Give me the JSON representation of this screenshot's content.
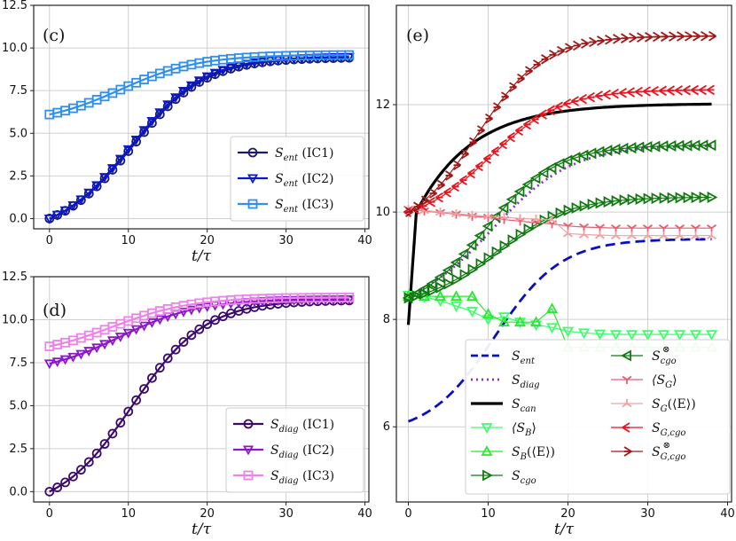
{
  "chart_data": [
    {
      "panel": "(c)",
      "type": "line",
      "xlabel": "t/τ",
      "xlim": [
        -2,
        40.5
      ],
      "ylim": [
        -0.6,
        12.5
      ],
      "xticks": [
        0,
        10,
        20,
        30,
        40
      ],
      "yticks": [
        0.0,
        2.5,
        5.0,
        7.5,
        10.0,
        12.5
      ],
      "ytick_labels": [
        "0.0",
        "2.5",
        "5.0",
        "7.5",
        "10.0",
        "12.5"
      ],
      "legend_position": "lower-right",
      "series": [
        {
          "name": "S_ent (IC1)",
          "label_main": "S",
          "label_sub": "ent",
          "label_suffix": " (IC1)",
          "color": "#1a1a6e",
          "marker": "circle",
          "fn": "sig",
          "params": [
            0.0,
            9.45,
            10.5,
            0.215
          ]
        },
        {
          "name": "S_ent (IC2)",
          "label_main": "S",
          "label_sub": "ent",
          "label_suffix": " (IC2)",
          "color": "#0a18c8",
          "marker": "tri_down",
          "fn": "sig",
          "params": [
            0.0,
            9.5,
            10.3,
            0.215
          ]
        },
        {
          "name": "S_ent (IC3)",
          "label_main": "S",
          "label_sub": "ent",
          "label_suffix": " (IC3)",
          "color": "#2f8fef",
          "marker": "square",
          "fn": "sig",
          "params": [
            6.1,
            9.6,
            9.0,
            0.2
          ]
        }
      ]
    },
    {
      "panel": "(d)",
      "type": "line",
      "xlabel": "t/τ",
      "xlim": [
        -2,
        40.5
      ],
      "ylim": [
        -0.6,
        12.5
      ],
      "xticks": [
        0,
        10,
        20,
        30,
        40
      ],
      "yticks": [
        0.0,
        2.5,
        5.0,
        7.5,
        10.0,
        12.5
      ],
      "ytick_labels": [
        "0.0",
        "2.5",
        "5.0",
        "7.5",
        "10.0",
        "12.5"
      ],
      "legend_position": "lower-right",
      "series": [
        {
          "name": "S_diag (IC1)",
          "label_main": "S",
          "label_sub": "diag",
          "label_suffix": " (IC1)",
          "color": "#3b0a6e",
          "marker": "circle",
          "fn": "sig",
          "params": [
            0.0,
            11.15,
            10.5,
            0.215
          ]
        },
        {
          "name": "S_diag (IC2)",
          "label_main": "S",
          "label_sub": "diag",
          "label_suffix": " (IC2)",
          "color": "#8a18c8",
          "marker": "tri_down",
          "fn": "sig",
          "params": [
            7.45,
            11.2,
            9.0,
            0.2
          ]
        },
        {
          "name": "S_diag (IC3)",
          "label_main": "S",
          "label_sub": "diag",
          "label_suffix": " (IC3)",
          "color": "#ec82ea",
          "marker": "square",
          "fn": "sig",
          "params": [
            8.45,
            11.3,
            8.0,
            0.2
          ]
        }
      ]
    },
    {
      "panel": "(e)",
      "type": "line",
      "xlabel": "t/τ",
      "xlim": [
        -1.5,
        40.5
      ],
      "ylim": [
        4.6,
        13.85
      ],
      "xticks": [
        0,
        10,
        20,
        30,
        40
      ],
      "yticks": [
        6,
        8,
        10,
        12
      ],
      "ytick_labels": [
        "6",
        "8",
        "10",
        "12"
      ],
      "legend_position": "lower-right",
      "series": [
        {
          "name": "S_ent",
          "label_main": "S",
          "label_sub": "ent",
          "color": "#0a10c0",
          "line": "dashed",
          "marker": "none",
          "fn": "sig",
          "params": [
            6.1,
            9.5,
            10.8,
            0.24
          ]
        },
        {
          "name": "S_diag",
          "label_main": "S",
          "label_sub": "diag",
          "color": "#8a30c8",
          "line": "dotted",
          "marker": "none",
          "fn": "sig",
          "params": [
            8.45,
            11.25,
            10.5,
            0.2
          ]
        },
        {
          "name": "S_can",
          "label_main": "S",
          "label_sub": "can",
          "color": "#000000",
          "line": "solid-thick",
          "marker": "none",
          "fn": "can",
          "params": [
            7.9,
            10.0,
            12.02,
            7.0
          ]
        },
        {
          "name": "<S_B>",
          "label_main": "⟨S",
          "label_sub": "B",
          "label_suffix": "⟩",
          "color": "#3aff6a",
          "marker": "tri_down",
          "fn": "pts",
          "x": [
            0,
            2,
            4,
            6,
            8,
            10,
            12,
            14,
            16,
            18,
            20,
            22,
            24,
            26,
            28,
            30,
            32,
            34,
            36,
            38
          ],
          "y": [
            8.45,
            8.42,
            8.35,
            8.25,
            8.15,
            8.0,
            8.05,
            7.95,
            7.9,
            7.85,
            7.78,
            7.75,
            7.73,
            7.72,
            7.72,
            7.72,
            7.72,
            7.72,
            7.72,
            7.72
          ]
        },
        {
          "name": "S_B(<E>)",
          "label_main": "S",
          "label_sub": "B",
          "label_suffix": "(⟨E⟩)",
          "color": "#28e830",
          "marker": "tri_up",
          "fn": "pts",
          "x": [
            0,
            2,
            4,
            6,
            8,
            10,
            12,
            14,
            16,
            18,
            20,
            22,
            24,
            26,
            28,
            30,
            32,
            34,
            36,
            38
          ],
          "y": [
            8.43,
            8.43,
            8.43,
            8.43,
            8.43,
            8.1,
            7.95,
            7.95,
            7.95,
            8.2,
            7.48,
            7.48,
            7.48,
            7.48,
            7.48,
            7.48,
            7.48,
            7.48,
            7.48,
            7.48
          ]
        },
        {
          "name": "S_cgo",
          "label_main": "S",
          "label_sub": "cgo",
          "color": "#127812",
          "marker": "tri_right",
          "fn": "sig",
          "params": [
            8.4,
            10.28,
            11.0,
            0.22
          ]
        },
        {
          "name": "S_cgo^⊗",
          "label_main": "S",
          "label_sub": "cgo",
          "label_sup": "⊗",
          "color": "#127812",
          "marker": "tri_left",
          "fn": "sig",
          "params": [
            8.4,
            11.25,
            9.5,
            0.22
          ]
        },
        {
          "name": "<S_G>",
          "label_main": "⟨S",
          "label_sub": "G",
          "label_suffix": "⟩",
          "color": "#e06070",
          "marker": "y_down",
          "fn": "pts",
          "x": [
            0,
            2,
            4,
            6,
            8,
            10,
            12,
            14,
            16,
            18,
            20,
            22,
            24,
            26,
            28,
            30,
            32,
            34,
            36,
            38
          ],
          "y": [
            10.05,
            10.02,
            9.99,
            9.96,
            9.92,
            9.9,
            9.86,
            9.83,
            9.8,
            9.78,
            9.74,
            9.72,
            9.71,
            9.7,
            9.7,
            9.7,
            9.7,
            9.7,
            9.7,
            9.7
          ]
        },
        {
          "name": "S_G(<E>)",
          "label_main": "S",
          "label_sub": "G",
          "label_suffix": "(⟨E⟩)",
          "color": "#f0a0a0",
          "marker": "star",
          "fn": "pts",
          "x": [
            0,
            2,
            4,
            6,
            8,
            10,
            12,
            14,
            16,
            18,
            20,
            22,
            24,
            26,
            28,
            30,
            32,
            34,
            36,
            38
          ],
          "y": [
            10.05,
            10.03,
            10.0,
            9.97,
            9.94,
            9.92,
            9.9,
            9.88,
            9.87,
            9.86,
            9.6,
            9.58,
            9.57,
            9.56,
            9.56,
            9.56,
            9.56,
            9.56,
            9.56,
            9.56
          ]
        },
        {
          "name": "S_G,cgo",
          "label_main": "S",
          "label_sub": "G,cgo",
          "color": "#e8141e",
          "marker": "arrow_left",
          "fn": "sig",
          "params": [
            10.0,
            12.28,
            10.2,
            0.22
          ]
        },
        {
          "name": "S_G,cgo^⊗",
          "label_main": "S",
          "label_sub": "G,cgo",
          "label_sup": "⊗",
          "color": "#a01818",
          "marker": "arrow_right",
          "fn": "sig",
          "params": [
            10.0,
            13.28,
            8.6,
            0.24
          ]
        }
      ]
    }
  ]
}
